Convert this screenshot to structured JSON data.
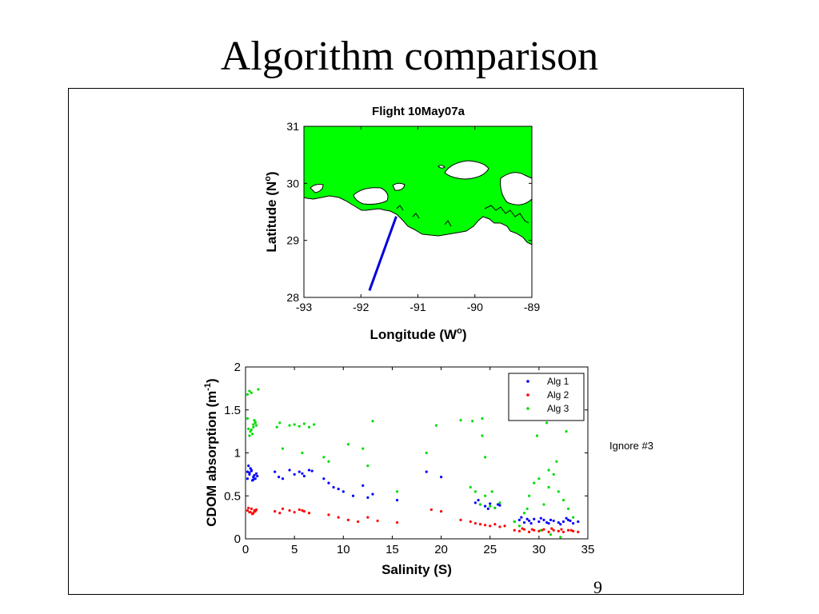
{
  "slide": {
    "title": "Algorithm comparison",
    "note": "Ignore #3",
    "page_number": "9"
  },
  "colors": {
    "land": "#00ff00",
    "track": "#0000dd",
    "alg1": "#0000ff",
    "alg2": "#ff0000",
    "alg3": "#00dd00"
  },
  "chart_data": [
    {
      "type": "line",
      "title": "Flight 10May07a",
      "xlabel": "Longitude (W",
      "xlabel_sup": "o",
      "xlabel_end": ")",
      "ylabel": "Latitude (N",
      "ylabel_sup": "o",
      "ylabel_end": ")",
      "xlim": [
        -93,
        -89
      ],
      "ylim": [
        28,
        31
      ],
      "xticks": [
        "-93",
        "-92",
        "-91",
        "-90",
        "-89"
      ],
      "yticks": [
        "28",
        "29",
        "30",
        "31"
      ],
      "series": [
        {
          "x": [
            -91.85,
            -91.38
          ],
          "y": [
            28.12,
            29.42
          ]
        }
      ]
    },
    {
      "type": "scatter",
      "title": "",
      "xlabel": "Salinity (S)",
      "ylabel": "CDOM absorption (m",
      "ylabel_sup": "-1",
      "ylabel_end": ")",
      "xlim": [
        0,
        35
      ],
      "ylim": [
        0,
        2
      ],
      "xticks": [
        "0",
        "5",
        "10",
        "15",
        "20",
        "25",
        "30",
        "35"
      ],
      "yticks": [
        "0",
        "0.5",
        "1",
        "1.5",
        "2"
      ],
      "legend": "top-right",
      "series": [
        {
          "name": "Alg 1",
          "color": "#0000ff",
          "x": [
            0.2,
            0.4,
            0.6,
            0.8,
            1.0,
            0.3,
            0.7,
            1.1,
            0.5,
            0.9,
            0.2,
            0.6,
            1.2,
            0.4,
            0.8,
            3.0,
            3.4,
            4.5,
            5.0,
            5.5,
            6.0,
            6.5,
            3.8,
            5.8,
            6.8,
            8.0,
            8.5,
            9.0,
            9.5,
            10.0,
            11.0,
            12.0,
            12.5,
            13.0,
            15.5,
            18.5,
            20.0,
            23.5,
            24.0,
            24.5,
            25.0,
            25.5,
            26.0,
            23.8,
            24.8,
            25.8,
            27.5,
            28.0,
            28.5,
            29.0,
            29.5,
            30.0,
            30.5,
            31.0,
            31.5,
            32.0,
            32.5,
            33.0,
            33.5,
            34.0,
            28.2,
            29.2,
            30.2,
            31.2,
            32.2,
            33.2,
            28.8,
            30.8,
            32.8
          ],
          "y": [
            0.78,
            0.75,
            0.8,
            0.72,
            0.7,
            0.85,
            0.68,
            0.76,
            0.82,
            0.74,
            0.7,
            0.79,
            0.73,
            0.77,
            0.69,
            0.78,
            0.72,
            0.8,
            0.75,
            0.78,
            0.73,
            0.8,
            0.7,
            0.76,
            0.79,
            0.7,
            0.65,
            0.6,
            0.58,
            0.55,
            0.5,
            0.62,
            0.48,
            0.52,
            0.45,
            0.78,
            0.72,
            0.42,
            0.4,
            0.38,
            0.41,
            0.36,
            0.39,
            0.45,
            0.35,
            0.4,
            0.2,
            0.22,
            0.19,
            0.21,
            0.23,
            0.2,
            0.22,
            0.18,
            0.21,
            0.19,
            0.2,
            0.22,
            0.18,
            0.2,
            0.25,
            0.18,
            0.24,
            0.22,
            0.17,
            0.21,
            0.23,
            0.19,
            0.24
          ]
        },
        {
          "name": "Alg 2",
          "color": "#ff0000",
          "x": [
            0.2,
            0.4,
            0.6,
            0.8,
            1.0,
            0.3,
            0.7,
            1.1,
            0.5,
            0.9,
            3.0,
            3.5,
            4.5,
            5.0,
            5.5,
            6.0,
            6.5,
            3.8,
            5.8,
            8.5,
            9.5,
            10.5,
            11.5,
            12.5,
            13.5,
            15.5,
            19.0,
            20.0,
            22.0,
            23.0,
            23.5,
            24.0,
            24.5,
            25.0,
            25.5,
            26.0,
            26.5,
            27.5,
            28.0,
            28.5,
            29.0,
            29.5,
            30.0,
            30.5,
            31.0,
            31.5,
            32.0,
            32.5,
            33.0,
            33.5,
            34.0,
            28.3,
            29.3,
            30.3,
            31.3,
            32.3,
            33.3
          ],
          "y": [
            0.33,
            0.31,
            0.35,
            0.3,
            0.32,
            0.36,
            0.29,
            0.34,
            0.31,
            0.33,
            0.32,
            0.3,
            0.33,
            0.31,
            0.34,
            0.32,
            0.3,
            0.35,
            0.33,
            0.28,
            0.25,
            0.22,
            0.2,
            0.25,
            0.21,
            0.19,
            0.34,
            0.32,
            0.22,
            0.2,
            0.18,
            0.17,
            0.16,
            0.15,
            0.17,
            0.14,
            0.15,
            0.1,
            0.09,
            0.11,
            0.08,
            0.1,
            0.09,
            0.11,
            0.08,
            0.1,
            0.09,
            0.08,
            0.1,
            0.09,
            0.08,
            0.12,
            0.11,
            0.1,
            0.12,
            0.11,
            0.1
          ]
        },
        {
          "name": "Alg 3",
          "color": "#00dd00",
          "x": [
            0.2,
            0.4,
            0.6,
            0.8,
            1.0,
            0.5,
            0.9,
            0.3,
            0.7,
            1.1,
            0.2,
            0.6,
            1.0,
            0.4,
            0.8,
            1.3,
            3.2,
            3.5,
            4.5,
            5.0,
            5.5,
            6.0,
            6.5,
            7.0,
            3.8,
            5.8,
            8.0,
            8.5,
            10.5,
            12.0,
            12.5,
            13.0,
            15.5,
            18.5,
            19.5,
            22.0,
            23.0,
            23.5,
            24.0,
            24.5,
            25.0,
            25.5,
            26.0,
            23.2,
            24.2,
            25.2,
            24.5,
            24.2,
            27.5,
            28.0,
            28.5,
            29.0,
            29.5,
            30.0,
            30.5,
            31.0,
            31.5,
            32.0,
            32.5,
            33.0,
            33.5,
            30.2,
            31.2,
            32.2,
            29.8,
            30.8,
            31.8,
            31.0,
            32.8,
            28.8
          ],
          "y": [
            1.68,
            1.72,
            1.7,
            1.3,
            1.35,
            1.25,
            1.38,
            1.28,
            1.22,
            1.32,
            1.4,
            1.27,
            1.36,
            1.2,
            1.33,
            1.74,
            1.3,
            1.35,
            1.32,
            1.33,
            1.31,
            1.34,
            1.3,
            1.33,
            1.05,
            1.0,
            0.95,
            0.9,
            1.1,
            1.05,
            0.85,
            1.37,
            0.55,
            1.0,
            1.32,
            1.38,
            0.6,
            0.55,
            0.4,
            0.5,
            0.38,
            0.36,
            0.42,
            1.37,
            1.4,
            0.55,
            0.95,
            1.2,
            0.2,
            0.15,
            0.3,
            0.5,
            0.65,
            0.7,
            0.4,
            0.6,
            0.75,
            0.55,
            0.45,
            0.35,
            0.25,
            0.1,
            0.05,
            0.02,
            1.2,
            1.35,
            0.9,
            0.8,
            1.25,
            0.35
          ]
        }
      ]
    }
  ]
}
